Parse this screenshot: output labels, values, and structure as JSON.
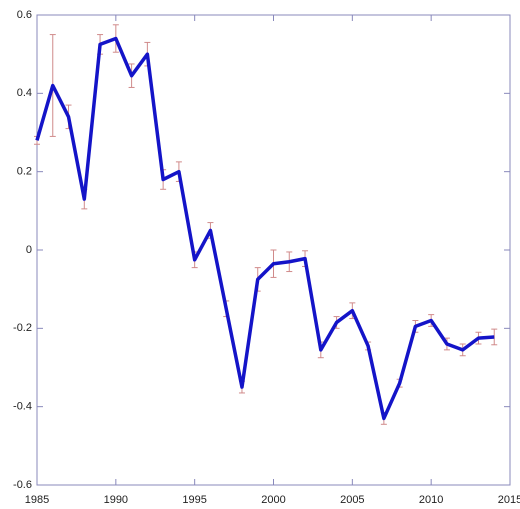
{
  "chart_data": {
    "type": "line",
    "x": [
      1985,
      1986,
      1987,
      1988,
      1989,
      1990,
      1991,
      1992,
      1993,
      1994,
      1995,
      1996,
      1997,
      1998,
      1999,
      2000,
      2001,
      2002,
      2003,
      2004,
      2005,
      2006,
      2007,
      2008,
      2009,
      2010,
      2011,
      2012,
      2013,
      2014
    ],
    "series": [
      {
        "color": "#1414c8",
        "values": [
          0.28,
          0.42,
          0.34,
          0.13,
          0.525,
          0.54,
          0.445,
          0.5,
          0.18,
          0.2,
          -0.025,
          0.05,
          -0.15,
          -0.35,
          -0.075,
          -0.035,
          -0.03,
          -0.022,
          -0.255,
          -0.185,
          -0.155,
          -0.245,
          -0.43,
          -0.34,
          -0.195,
          -0.18,
          -0.24,
          -0.255,
          -0.225,
          -0.222
        ],
        "errors": [
          0.01,
          0.13,
          0.03,
          0.025,
          0.025,
          0.035,
          0.03,
          0.03,
          0.025,
          0.025,
          0.02,
          0.02,
          0.02,
          0.015,
          0.03,
          0.035,
          0.025,
          0.02,
          0.02,
          0.015,
          0.02,
          0.01,
          0.015,
          0.01,
          0.015,
          0.015,
          0.015,
          0.015,
          0.015,
          0.02
        ],
        "error_color": "#d08a8a"
      }
    ],
    "xlim": [
      1985,
      2015
    ],
    "xticks": [
      1985,
      1990,
      1995,
      2000,
      2005,
      2010,
      2015
    ],
    "ylim": [
      -0.6,
      0.6
    ],
    "yticks": [
      -0.6,
      -0.4,
      -0.2,
      0,
      0.2,
      0.4,
      0.6
    ]
  }
}
